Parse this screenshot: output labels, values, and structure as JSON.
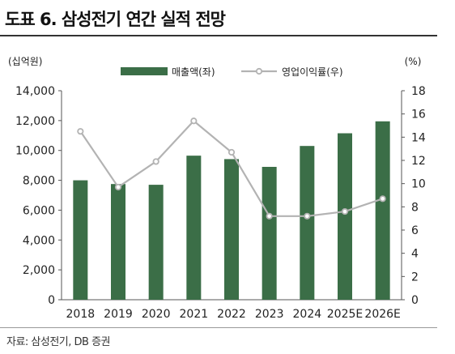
{
  "header": {
    "title": "도표 6. 삼성전기 연간 실적 전망",
    "source": "자료: 삼성전기, DB 증권"
  },
  "chart_data": {
    "type": "bar",
    "categories": [
      "2018",
      "2019",
      "2020",
      "2021",
      "2022",
      "2023",
      "2024",
      "2025E",
      "2026E"
    ],
    "left_unit": "(십억원)",
    "right_unit": "(%)",
    "left_ticks": [
      "0",
      "2,000",
      "4,000",
      "6,000",
      "8,000",
      "10,000",
      "12,000",
      "14,000"
    ],
    "right_ticks": [
      "0",
      "2",
      "4",
      "6",
      "8",
      "10",
      "12",
      "14",
      "16",
      "18"
    ],
    "ylim_left": [
      0,
      14000
    ],
    "ylim_right": [
      0,
      18
    ],
    "grid": false,
    "legend_position": "top",
    "series": [
      {
        "name": "매출액(좌)",
        "kind": "bar",
        "axis": "left",
        "color": "#3b6e47",
        "values": [
          8000,
          7750,
          7700,
          9650,
          9420,
          8900,
          10300,
          11150,
          11950
        ]
      },
      {
        "name": "영업이익률(우)",
        "kind": "line",
        "axis": "right",
        "color": "#b3b3b3",
        "values": [
          14.5,
          9.7,
          11.9,
          15.4,
          12.7,
          7.2,
          7.2,
          7.6,
          8.7
        ]
      }
    ]
  }
}
